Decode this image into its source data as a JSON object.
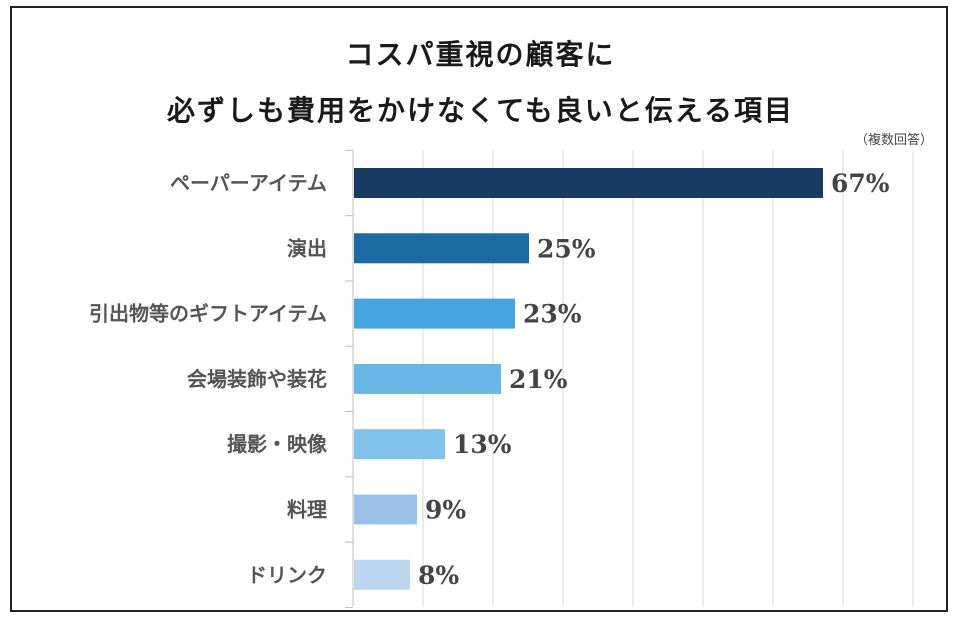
{
  "chart_data": {
    "type": "bar",
    "orientation": "horizontal",
    "title_line1": "コスパ重視の顧客に",
    "title_line2": "必ずしも費用をかけなくても良いと伝える項目",
    "note": "（複数回答）",
    "categories": [
      "ペーパーアイテム",
      "演出",
      "引出物等のギフトアイテム",
      "会場装飾や装花",
      "撮影・映像",
      "料理",
      "ドリンク"
    ],
    "values": [
      67,
      25,
      23,
      21,
      13,
      9,
      8
    ],
    "value_labels": [
      "67%",
      "25%",
      "23%",
      "21%",
      "13%",
      "9%",
      "8%"
    ],
    "colors": [
      "#193b63",
      "#1a6aa3",
      "#45a6df",
      "#67b6e6",
      "#80c2ea",
      "#9bc0e8",
      "#bdd6ef"
    ],
    "xlim": [
      0,
      80
    ],
    "grid": true,
    "unit": "%"
  }
}
